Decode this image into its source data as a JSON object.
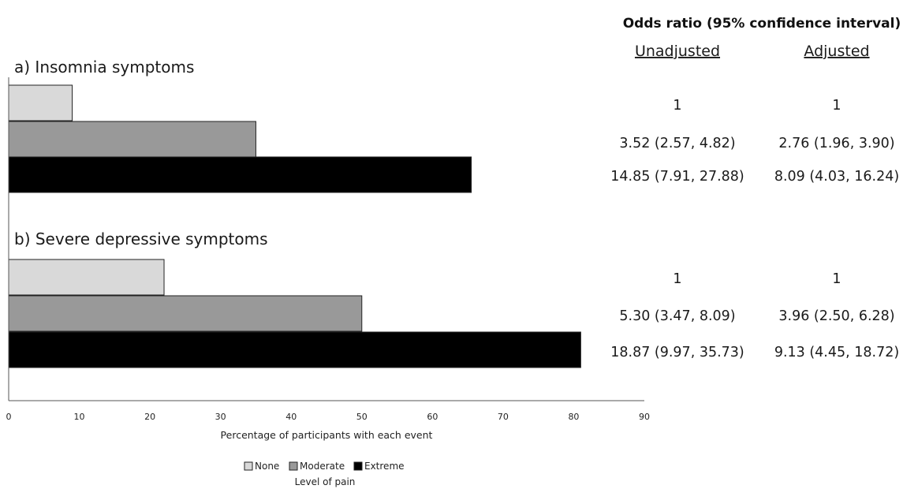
{
  "chart_data": {
    "type": "bar",
    "orientation": "horizontal",
    "xlabel": "Percentage of participants with each event",
    "xlim": [
      0,
      90
    ],
    "xticks": [
      0,
      10,
      20,
      30,
      40,
      50,
      60,
      70,
      80,
      90
    ],
    "legend": {
      "title": "Level of pain",
      "placement": "bottom",
      "entries": [
        "None",
        "Moderate",
        "Extreme"
      ]
    },
    "series_colors": {
      "None": "#d9d9d9",
      "Moderate": "#999999",
      "Extreme": "#000000"
    },
    "panels": [
      {
        "title": "a) Insomnia symptoms",
        "values": {
          "None": 9,
          "Moderate": 35,
          "Extreme": 65.5
        }
      },
      {
        "title": "b) Severe depressive symptoms",
        "values": {
          "None": 22,
          "Moderate": 50,
          "Extreme": 81
        }
      }
    ],
    "odds_table": {
      "title": "Odds ratio (95% confidence interval)",
      "columns": [
        "Unadjusted",
        "Adjusted"
      ],
      "panels": [
        {
          "rows": [
            [
              "1",
              "1"
            ],
            [
              "3.52 (2.57, 4.82)",
              "2.76 (1.96, 3.90)"
            ],
            [
              "14.85 (7.91, 27.88)",
              "8.09 (4.03, 16.24)"
            ]
          ]
        },
        {
          "rows": [
            [
              "1",
              "1"
            ],
            [
              "5.30 (3.47, 8.09)",
              "3.96 (2.50, 6.28)"
            ],
            [
              "18.87 (9.97, 35.73)",
              "9.13 (4.45, 18.72)"
            ]
          ]
        }
      ]
    }
  }
}
